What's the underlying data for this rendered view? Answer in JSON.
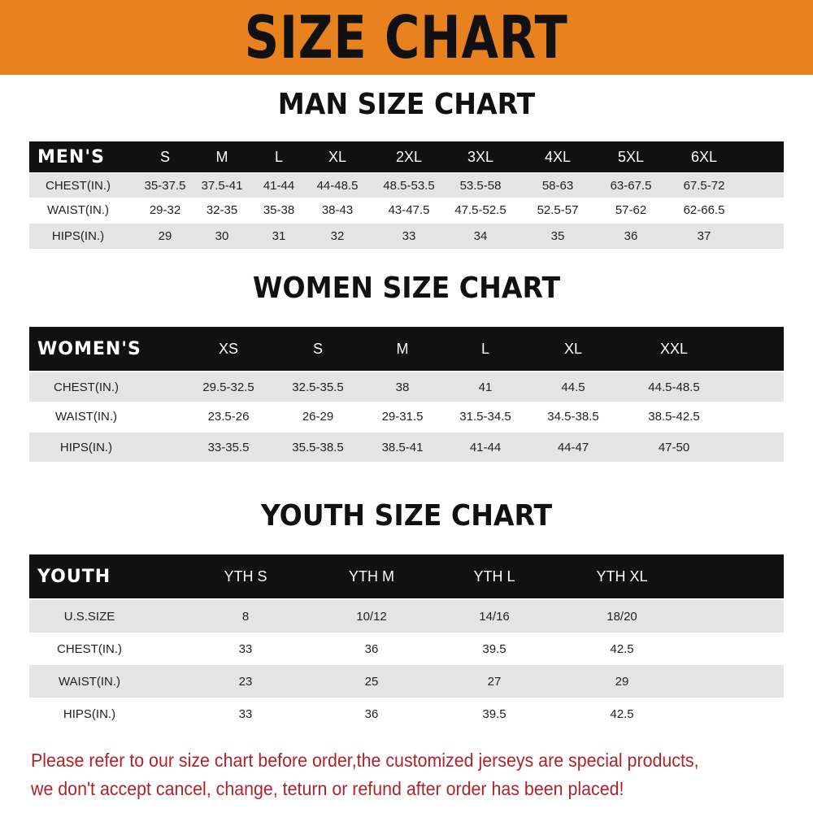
{
  "header": {
    "title": "SIZE CHART",
    "banner_color": "#e8821e"
  },
  "men": {
    "title": "MAN SIZE CHART",
    "columns": [
      "MEN'S",
      "S",
      "M",
      "L",
      "XL",
      "2XL",
      "3XL",
      "4XL",
      "5XL",
      "6XL"
    ],
    "rows": [
      [
        "CHEST(IN.)",
        "35-37.5",
        "37.5-41",
        "41-44",
        "44-48.5",
        "48.5-53.5",
        "53.5-58",
        "58-63",
        "63-67.5",
        "67.5-72"
      ],
      [
        "WAIST(IN.)",
        "29-32",
        "32-35",
        "35-38",
        "38-43",
        "43-47.5",
        "47.5-52.5",
        "52.5-57",
        "57-62",
        "62-66.5"
      ],
      [
        "HIPS(IN.)",
        "29",
        "30",
        "31",
        "32",
        "33",
        "34",
        "35",
        "36",
        "37"
      ]
    ]
  },
  "women": {
    "title": "WOMEN SIZE CHART",
    "columns": [
      "WOMEN'S",
      "XS",
      "S",
      "M",
      "L",
      "XL",
      "XXL"
    ],
    "rows": [
      [
        "CHEST(IN.)",
        "29.5-32.5",
        "32.5-35.5",
        "38",
        "41",
        "44.5",
        "44.5-48.5"
      ],
      [
        "WAIST(IN.)",
        "23.5-26",
        "26-29",
        "29-31.5",
        "31.5-34.5",
        "34.5-38.5",
        "38.5-42.5"
      ],
      [
        "HIPS(IN.)",
        "33-35.5",
        "35.5-38.5",
        "38.5-41",
        "41-44",
        "44-47",
        "47-50"
      ]
    ]
  },
  "youth": {
    "title": "YOUTH SIZE CHART",
    "columns": [
      "YOUTH",
      "YTH S",
      "YTH M",
      "YTH L",
      "YTH XL"
    ],
    "rows": [
      [
        "U.S.SIZE",
        "8",
        "10/12",
        "14/16",
        "18/20"
      ],
      [
        "CHEST(IN.)",
        "33",
        "36",
        "39.5",
        "42.5"
      ],
      [
        "WAIST(IN.)",
        "23",
        "25",
        "27",
        "29"
      ],
      [
        "HIPS(IN.)",
        "33",
        "36",
        "39.5",
        "42.5"
      ]
    ]
  },
  "notice": {
    "line1": "Please refer to our size chart before order,the customized jerseys are special products,",
    "line2": "we don't accept cancel, change, teturn or refund after order has been placed!",
    "color": "#b0232a"
  }
}
